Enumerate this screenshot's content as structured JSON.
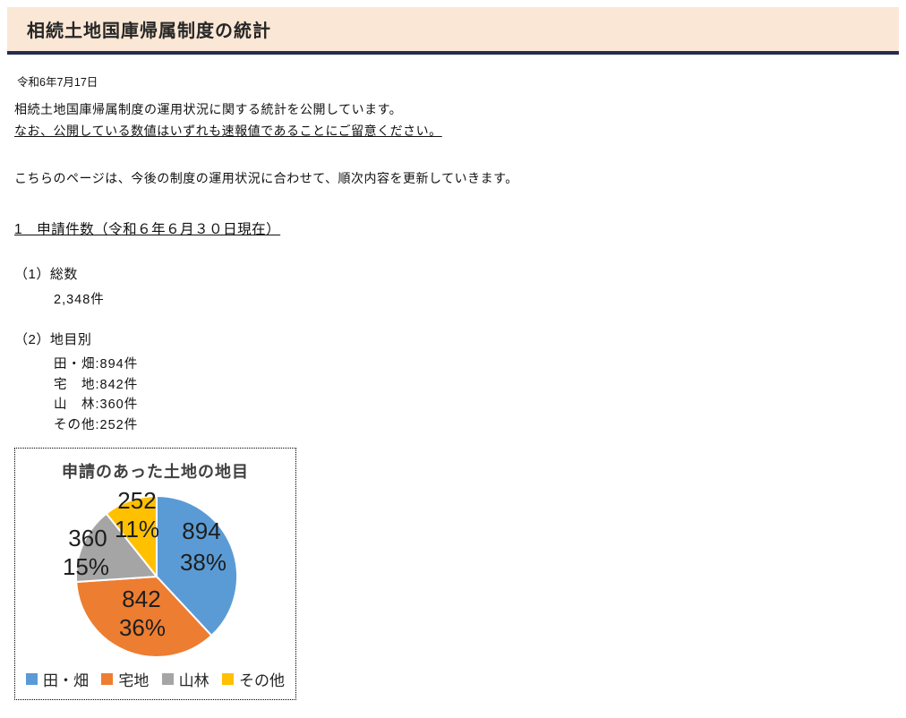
{
  "page": {
    "title": "相続土地国庫帰属制度の統計",
    "date": "令和6年7月17日",
    "intro_line1": "相続土地国庫帰属制度の運用状況に関する統計を公開しています。",
    "intro_line2": "なお、公開している数値はいずれも速報値であることにご留意ください。",
    "intro_line3": "こちらのページは、今後の制度の運用状況に合わせて、順次内容を更新していきます。",
    "section1": {
      "heading": "1　申請件数（令和６年６月３０日現在）",
      "sub1_label": "（1）総数",
      "sub1_value": "2,348件",
      "sub2_label": "（2）地目別",
      "sub2_items": [
        "田・畑:894件",
        "宅　地:842件",
        "山　林:360件",
        "その他:252件"
      ]
    }
  },
  "theme": {
    "header_background": "#FAE7D5",
    "header_border": "#252C50"
  },
  "chart_data": {
    "type": "pie",
    "title": "申請のあった土地の地目",
    "categories": [
      "田・畑",
      "宅地",
      "山林",
      "その他"
    ],
    "values": [
      894,
      842,
      360,
      252
    ],
    "percent_labels": [
      "38%",
      "36%",
      "15%",
      "11%"
    ],
    "colors": [
      "#5B9BD5",
      "#ED7D31",
      "#A5A5A5",
      "#FFC000"
    ],
    "start_angle": "top",
    "direction": "clockwise",
    "legend_position": "bottom",
    "border_style": "dotted"
  }
}
